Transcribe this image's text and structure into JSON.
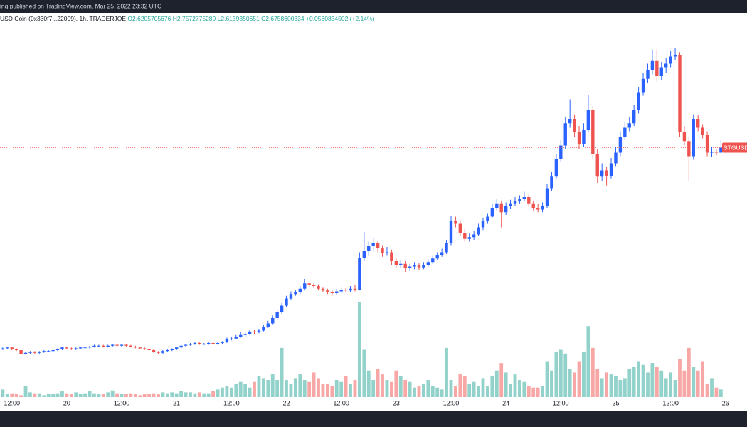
{
  "chart_data": {
    "type": "candlestick",
    "published": "ing published on TradingView.com, Mar 25, 2022 23:32 UTC",
    "symbol": "USD Coin (0x330f7...22009), 1h, TRADERJOE",
    "ohlc_labels": [
      "O2.6205705676",
      "H2.7572775289",
      "L2.6139350651",
      "C2.6758600334",
      "+0.0560834502 (+2.14%)"
    ],
    "last_price_label": "STGUSDC",
    "up_color": "#2962ff",
    "down_color": "#ef5350",
    "volume_up_color": "#92d2ca",
    "volume_down_color": "#f7a8a6",
    "ylim": [
      -0.24,
      4.08
    ],
    "volume_lim": [
      0,
      100
    ],
    "xlim": [
      -0.6,
      162.7
    ],
    "xticks": [
      {
        "value": 2,
        "label": "12:00"
      },
      {
        "value": 14,
        "label": "20"
      },
      {
        "value": 26,
        "label": "12:00"
      },
      {
        "value": 38,
        "label": "21"
      },
      {
        "value": 50,
        "label": "12:00"
      },
      {
        "value": 62,
        "label": "22"
      },
      {
        "value": 74,
        "label": "12:00"
      },
      {
        "value": 86,
        "label": "23"
      },
      {
        "value": 98,
        "label": "12:00"
      },
      {
        "value": 110,
        "label": "24"
      },
      {
        "value": 122,
        "label": "12:00"
      },
      {
        "value": 134,
        "label": "25"
      },
      {
        "value": 146,
        "label": "12:00"
      },
      {
        "value": 158,
        "label": "26"
      }
    ],
    "candles": [
      [
        0.41,
        0.43,
        0.4,
        0.42
      ],
      [
        0.42,
        0.44,
        0.41,
        0.43
      ],
      [
        0.43,
        0.44,
        0.4,
        0.41
      ],
      [
        0.41,
        0.42,
        0.39,
        0.4
      ],
      [
        0.4,
        0.41,
        0.35,
        0.36
      ],
      [
        0.36,
        0.38,
        0.35,
        0.37
      ],
      [
        0.37,
        0.39,
        0.36,
        0.38
      ],
      [
        0.38,
        0.39,
        0.36,
        0.37
      ],
      [
        0.37,
        0.39,
        0.36,
        0.38
      ],
      [
        0.38,
        0.4,
        0.37,
        0.39
      ],
      [
        0.39,
        0.4,
        0.38,
        0.39
      ],
      [
        0.39,
        0.41,
        0.38,
        0.4
      ],
      [
        0.4,
        0.42,
        0.39,
        0.41
      ],
      [
        0.41,
        0.44,
        0.4,
        0.43
      ],
      [
        0.43,
        0.44,
        0.41,
        0.42
      ],
      [
        0.42,
        0.43,
        0.4,
        0.41
      ],
      [
        0.41,
        0.43,
        0.4,
        0.42
      ],
      [
        0.42,
        0.44,
        0.41,
        0.43
      ],
      [
        0.43,
        0.44,
        0.42,
        0.43
      ],
      [
        0.43,
        0.45,
        0.42,
        0.44
      ],
      [
        0.44,
        0.46,
        0.43,
        0.45
      ],
      [
        0.45,
        0.46,
        0.44,
        0.45
      ],
      [
        0.45,
        0.46,
        0.43,
        0.44
      ],
      [
        0.44,
        0.46,
        0.43,
        0.45
      ],
      [
        0.45,
        0.47,
        0.44,
        0.46
      ],
      [
        0.46,
        0.47,
        0.44,
        0.45
      ],
      [
        0.45,
        0.47,
        0.44,
        0.46
      ],
      [
        0.46,
        0.47,
        0.44,
        0.45
      ],
      [
        0.45,
        0.46,
        0.43,
        0.44
      ],
      [
        0.44,
        0.45,
        0.42,
        0.43
      ],
      [
        0.43,
        0.44,
        0.41,
        0.42
      ],
      [
        0.42,
        0.43,
        0.4,
        0.41
      ],
      [
        0.41,
        0.42,
        0.39,
        0.4
      ],
      [
        0.4,
        0.41,
        0.37,
        0.38
      ],
      [
        0.38,
        0.39,
        0.36,
        0.37
      ],
      [
        0.37,
        0.4,
        0.36,
        0.39
      ],
      [
        0.39,
        0.41,
        0.38,
        0.4
      ],
      [
        0.4,
        0.42,
        0.39,
        0.41
      ],
      [
        0.41,
        0.44,
        0.4,
        0.43
      ],
      [
        0.43,
        0.46,
        0.42,
        0.45
      ],
      [
        0.45,
        0.47,
        0.44,
        0.46
      ],
      [
        0.46,
        0.48,
        0.45,
        0.47
      ],
      [
        0.47,
        0.49,
        0.46,
        0.48
      ],
      [
        0.48,
        0.49,
        0.46,
        0.47
      ],
      [
        0.47,
        0.48,
        0.46,
        0.47
      ],
      [
        0.47,
        0.49,
        0.46,
        0.48
      ],
      [
        0.48,
        0.49,
        0.46,
        0.47
      ],
      [
        0.47,
        0.49,
        0.46,
        0.48
      ],
      [
        0.48,
        0.5,
        0.47,
        0.49
      ],
      [
        0.49,
        0.54,
        0.48,
        0.52
      ],
      [
        0.52,
        0.55,
        0.51,
        0.53
      ],
      [
        0.53,
        0.57,
        0.52,
        0.55
      ],
      [
        0.55,
        0.6,
        0.54,
        0.57
      ],
      [
        0.57,
        0.6,
        0.55,
        0.58
      ],
      [
        0.58,
        0.63,
        0.57,
        0.61
      ],
      [
        0.61,
        0.63,
        0.58,
        0.6
      ],
      [
        0.6,
        0.64,
        0.59,
        0.62
      ],
      [
        0.62,
        0.68,
        0.61,
        0.66
      ],
      [
        0.66,
        0.73,
        0.65,
        0.7
      ],
      [
        0.7,
        0.79,
        0.69,
        0.76
      ],
      [
        0.76,
        0.86,
        0.74,
        0.83
      ],
      [
        0.83,
        0.93,
        0.81,
        0.9
      ],
      [
        0.9,
        1.01,
        0.88,
        0.98
      ],
      [
        0.98,
        1.06,
        0.96,
        1.03
      ],
      [
        1.03,
        1.08,
        1.01,
        1.05
      ],
      [
        1.05,
        1.12,
        1.03,
        1.09
      ],
      [
        1.09,
        1.2,
        1.07,
        1.15
      ],
      [
        1.15,
        1.17,
        1.11,
        1.13
      ],
      [
        1.13,
        1.15,
        1.1,
        1.12
      ],
      [
        1.12,
        1.14,
        1.07,
        1.09
      ],
      [
        1.09,
        1.11,
        1.05,
        1.07
      ],
      [
        1.07,
        1.09,
        1.03,
        1.05
      ],
      [
        1.05,
        1.08,
        1.01,
        1.04
      ],
      [
        1.04,
        1.09,
        1.02,
        1.06
      ],
      [
        1.06,
        1.11,
        1.04,
        1.08
      ],
      [
        1.08,
        1.1,
        1.05,
        1.07
      ],
      [
        1.07,
        1.12,
        1.05,
        1.09
      ],
      [
        1.09,
        1.13,
        1.06,
        1.08
      ],
      [
        1.08,
        1.5,
        1.07,
        1.44
      ],
      [
        1.44,
        1.73,
        1.4,
        1.52
      ],
      [
        1.52,
        1.62,
        1.46,
        1.57
      ],
      [
        1.57,
        1.66,
        1.52,
        1.6
      ],
      [
        1.6,
        1.63,
        1.5,
        1.55
      ],
      [
        1.55,
        1.58,
        1.45,
        1.49
      ],
      [
        1.49,
        1.56,
        1.46,
        1.5
      ],
      [
        1.5,
        1.53,
        1.36,
        1.4
      ],
      [
        1.4,
        1.44,
        1.32,
        1.36
      ],
      [
        1.36,
        1.41,
        1.33,
        1.37
      ],
      [
        1.37,
        1.4,
        1.28,
        1.32
      ],
      [
        1.32,
        1.37,
        1.29,
        1.34
      ],
      [
        1.34,
        1.39,
        1.31,
        1.36
      ],
      [
        1.36,
        1.38,
        1.3,
        1.33
      ],
      [
        1.33,
        1.39,
        1.31,
        1.36
      ],
      [
        1.36,
        1.42,
        1.34,
        1.39
      ],
      [
        1.39,
        1.46,
        1.37,
        1.43
      ],
      [
        1.43,
        1.5,
        1.41,
        1.47
      ],
      [
        1.47,
        1.54,
        1.45,
        1.5
      ],
      [
        1.5,
        1.64,
        1.48,
        1.6
      ],
      [
        1.6,
        1.91,
        1.58,
        1.85
      ],
      [
        1.85,
        1.9,
        1.78,
        1.82
      ],
      [
        1.82,
        1.86,
        1.68,
        1.72
      ],
      [
        1.72,
        1.76,
        1.62,
        1.65
      ],
      [
        1.65,
        1.71,
        1.62,
        1.67
      ],
      [
        1.67,
        1.74,
        1.64,
        1.7
      ],
      [
        1.7,
        1.82,
        1.68,
        1.78
      ],
      [
        1.78,
        1.89,
        1.75,
        1.85
      ],
      [
        1.85,
        1.94,
        1.82,
        1.9
      ],
      [
        1.9,
        2.05,
        1.88,
        2.0
      ],
      [
        2.0,
        2.1,
        1.97,
        2.05
      ],
      [
        2.05,
        2.08,
        1.78,
        1.95
      ],
      [
        1.95,
        2.06,
        1.92,
        2.02
      ],
      [
        2.02,
        2.09,
        1.99,
        2.05
      ],
      [
        2.05,
        2.12,
        2.02,
        2.08
      ],
      [
        2.08,
        2.14,
        2.05,
        2.1
      ],
      [
        2.1,
        2.18,
        2.07,
        2.12
      ],
      [
        2.12,
        2.15,
        2.01,
        2.05
      ],
      [
        2.05,
        2.08,
        1.97,
        2.0
      ],
      [
        2.0,
        2.04,
        1.95,
        1.98
      ],
      [
        1.98,
        2.06,
        1.95,
        2.02
      ],
      [
        2.02,
        2.27,
        2.0,
        2.22
      ],
      [
        2.22,
        2.4,
        2.19,
        2.35
      ],
      [
        2.35,
        2.6,
        2.32,
        2.55
      ],
      [
        2.55,
        2.76,
        2.52,
        2.7
      ],
      [
        2.7,
        3.02,
        2.66,
        2.95
      ],
      [
        2.95,
        3.22,
        2.9,
        3.0
      ],
      [
        3.0,
        3.05,
        2.8,
        2.85
      ],
      [
        2.85,
        2.92,
        2.66,
        2.72
      ],
      [
        2.72,
        2.95,
        2.68,
        2.88
      ],
      [
        2.88,
        3.27,
        2.85,
        3.1
      ],
      [
        3.1,
        3.14,
        2.55,
        2.6
      ],
      [
        2.6,
        2.66,
        2.28,
        2.35
      ],
      [
        2.35,
        2.5,
        2.3,
        2.42
      ],
      [
        2.42,
        2.46,
        2.25,
        2.36
      ],
      [
        2.36,
        2.56,
        2.33,
        2.5
      ],
      [
        2.5,
        2.68,
        2.47,
        2.62
      ],
      [
        2.62,
        2.86,
        2.58,
        2.8
      ],
      [
        2.8,
        2.96,
        2.76,
        2.9
      ],
      [
        2.9,
        3.02,
        2.86,
        2.95
      ],
      [
        2.95,
        3.16,
        2.92,
        3.1
      ],
      [
        3.1,
        3.36,
        3.06,
        3.3
      ],
      [
        3.3,
        3.52,
        3.26,
        3.45
      ],
      [
        3.45,
        3.62,
        3.4,
        3.55
      ],
      [
        3.55,
        3.78,
        3.5,
        3.65
      ],
      [
        3.65,
        3.78,
        3.42,
        3.48
      ],
      [
        3.48,
        3.64,
        3.44,
        3.58
      ],
      [
        3.58,
        3.68,
        3.52,
        3.62
      ],
      [
        3.62,
        3.76,
        3.58,
        3.7
      ],
      [
        3.7,
        3.8,
        3.66,
        3.72
      ],
      [
        3.72,
        3.75,
        2.8,
        2.85
      ],
      [
        2.85,
        2.92,
        2.7,
        2.75
      ],
      [
        2.75,
        2.8,
        2.3,
        2.58
      ],
      [
        2.58,
        3.05,
        2.54,
        3.0
      ],
      [
        3.0,
        3.04,
        2.86,
        2.9
      ],
      [
        2.9,
        2.94,
        2.78,
        2.82
      ],
      [
        2.82,
        2.86,
        2.58,
        2.62
      ],
      [
        2.62,
        2.68,
        2.57,
        2.63
      ],
      [
        2.63,
        2.66,
        2.59,
        2.62
      ],
      [
        2.6206,
        2.7573,
        2.6139,
        2.6759
      ]
    ],
    "volume": [
      8,
      3,
      4,
      3,
      2,
      12,
      5,
      4,
      4,
      2,
      3,
      3,
      4,
      6,
      4,
      3,
      5,
      3,
      4,
      6,
      4,
      3,
      3,
      5,
      7,
      4,
      3,
      3,
      4,
      3,
      2,
      3,
      3,
      4,
      3,
      5,
      4,
      5,
      4,
      6,
      5,
      5,
      4,
      5,
      4,
      4,
      6,
      8,
      10,
      12,
      10,
      14,
      16,
      14,
      10,
      16,
      22,
      20,
      18,
      24,
      18,
      52,
      18,
      14,
      20,
      24,
      18,
      16,
      26,
      20,
      14,
      14,
      12,
      18,
      16,
      22,
      14,
      18,
      100,
      50,
      28,
      18,
      30,
      24,
      18,
      16,
      28,
      22,
      18,
      16,
      10,
      12,
      14,
      18,
      12,
      10,
      8,
      52,
      18,
      12,
      24,
      22,
      14,
      16,
      12,
      20,
      12,
      22,
      28,
      36,
      26,
      14,
      24,
      18,
      16,
      12,
      10,
      10,
      12,
      38,
      28,
      48,
      50,
      46,
      30,
      26,
      38,
      48,
      75,
      52,
      30,
      20,
      26,
      24,
      22,
      18,
      20,
      30,
      32,
      38,
      34,
      26,
      36,
      32,
      28,
      20,
      26,
      18,
      40,
      28,
      52,
      32,
      28,
      38,
      14,
      20,
      10,
      8
    ]
  }
}
